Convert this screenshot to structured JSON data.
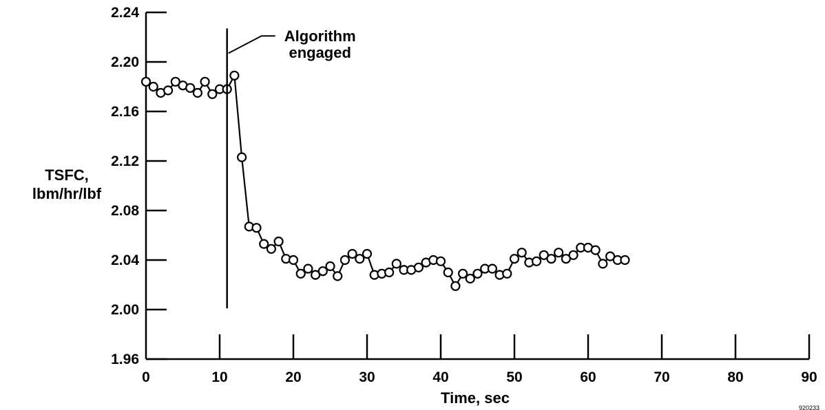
{
  "chart_data": {
    "type": "line",
    "title": "",
    "xlabel": "Time, sec",
    "ylabel": [
      "TSFC,",
      "lbm/hr/lbf"
    ],
    "xlim": [
      0,
      90
    ],
    "ylim": [
      1.96,
      2.24
    ],
    "x_ticks": [
      0,
      10,
      20,
      30,
      40,
      50,
      60,
      70,
      80,
      90
    ],
    "x_tick_labels": [
      "0",
      "10",
      "20",
      "30",
      "40",
      "50",
      "60",
      "70",
      "80",
      "90"
    ],
    "y_ticks": [
      1.96,
      2.0,
      2.04,
      2.08,
      2.12,
      2.16,
      2.2,
      2.24
    ],
    "y_tick_labels": [
      "1.96",
      "2.00",
      "2.04",
      "2.08",
      "2.12",
      "2.16",
      "2.20",
      "2.24"
    ],
    "grid": false,
    "marker": "open-circle",
    "series": [
      {
        "x": [
          0,
          1,
          2,
          3,
          4,
          5,
          6,
          7,
          8,
          9,
          10,
          11,
          12,
          13,
          14,
          15,
          16,
          17,
          18,
          19,
          20,
          21,
          22,
          23,
          24,
          25,
          26,
          27,
          28,
          29,
          30,
          31,
          32,
          33,
          34,
          35,
          36,
          37,
          38,
          39,
          40,
          41,
          42,
          43,
          44,
          45,
          46,
          47,
          48,
          49,
          50,
          51,
          52,
          53,
          54,
          55,
          56,
          57,
          58,
          59,
          60,
          61,
          62,
          63,
          64,
          65
        ],
        "y": [
          2.184,
          2.18,
          2.175,
          2.177,
          2.184,
          2.181,
          2.179,
          2.175,
          2.184,
          2.174,
          2.178,
          2.178,
          2.189,
          2.123,
          2.067,
          2.066,
          2.053,
          2.049,
          2.055,
          2.041,
          2.04,
          2.029,
          2.033,
          2.028,
          2.031,
          2.035,
          2.027,
          2.04,
          2.045,
          2.041,
          2.045,
          2.028,
          2.029,
          2.03,
          2.037,
          2.032,
          2.032,
          2.034,
          2.038,
          2.04,
          2.039,
          2.03,
          2.019,
          2.029,
          2.025,
          2.029,
          2.033,
          2.033,
          2.028,
          2.029,
          2.041,
          2.046,
          2.038,
          2.039,
          2.044,
          2.041,
          2.046,
          2.041,
          2.044,
          2.05,
          2.05,
          2.048,
          2.037,
          2.043,
          2.04,
          2.04
        ]
      }
    ],
    "annotations": [
      {
        "text": [
          "Algorithm",
          "engaged"
        ],
        "x": 11.0,
        "y_range": [
          2.001,
          2.227
        ]
      }
    ]
  },
  "figure_id": "920233"
}
